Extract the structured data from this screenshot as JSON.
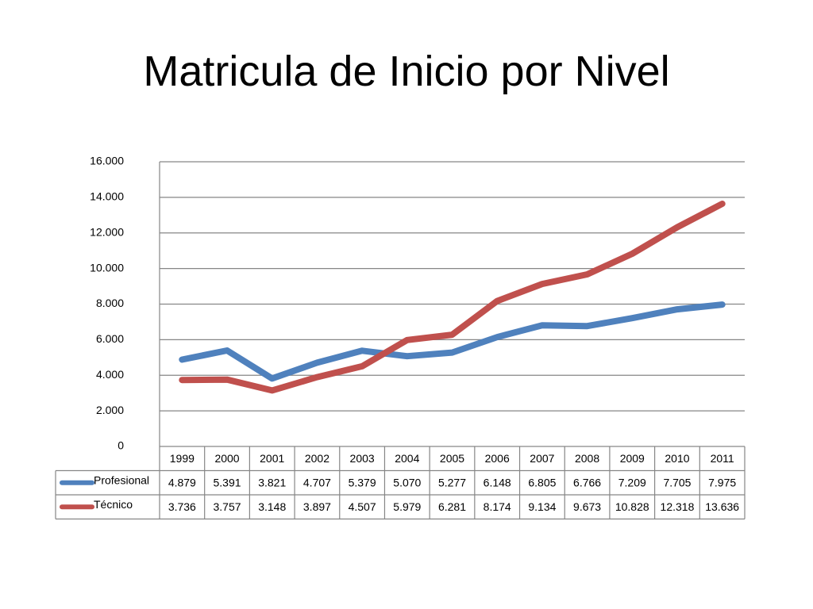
{
  "title": "Matricula de Inicio por Nivel",
  "chart_data": {
    "type": "line",
    "title": "",
    "xlabel": "",
    "ylabel": "",
    "categories": [
      "1999",
      "2000",
      "2001",
      "2002",
      "2003",
      "2004",
      "2005",
      "2006",
      "2007",
      "2008",
      "2009",
      "2010",
      "2011"
    ],
    "ylim": [
      0,
      16000
    ],
    "yticks": [
      0,
      2000,
      4000,
      6000,
      8000,
      10000,
      12000,
      14000,
      16000
    ],
    "ytick_labels": [
      "0",
      "2.000",
      "4.000",
      "6.000",
      "8.000",
      "10.000",
      "12.000",
      "14.000",
      "16.000"
    ],
    "grid": true,
    "legend": "data-table",
    "series": [
      {
        "name": "Profesional",
        "color": "#4F81BD",
        "values": [
          4879,
          5391,
          3821,
          4707,
          5379,
          5070,
          5277,
          6148,
          6805,
          6766,
          7209,
          7705,
          7975
        ],
        "labels": [
          "4.879",
          "5.391",
          "3.821",
          "4.707",
          "5.379",
          "5.070",
          "5.277",
          "6.148",
          "6.805",
          "6.766",
          "7.209",
          "7.705",
          "7.975"
        ]
      },
      {
        "name": "Técnico",
        "color": "#C0504D",
        "values": [
          3736,
          3757,
          3148,
          3897,
          4507,
          5979,
          6281,
          8174,
          9134,
          9673,
          10828,
          12318,
          13636
        ],
        "labels": [
          "3.736",
          "3.757",
          "3.148",
          "3.897",
          "4.507",
          "5.979",
          "6.281",
          "8.174",
          "9.134",
          "9.673",
          "10.828",
          "12.318",
          "13.636"
        ]
      }
    ]
  }
}
